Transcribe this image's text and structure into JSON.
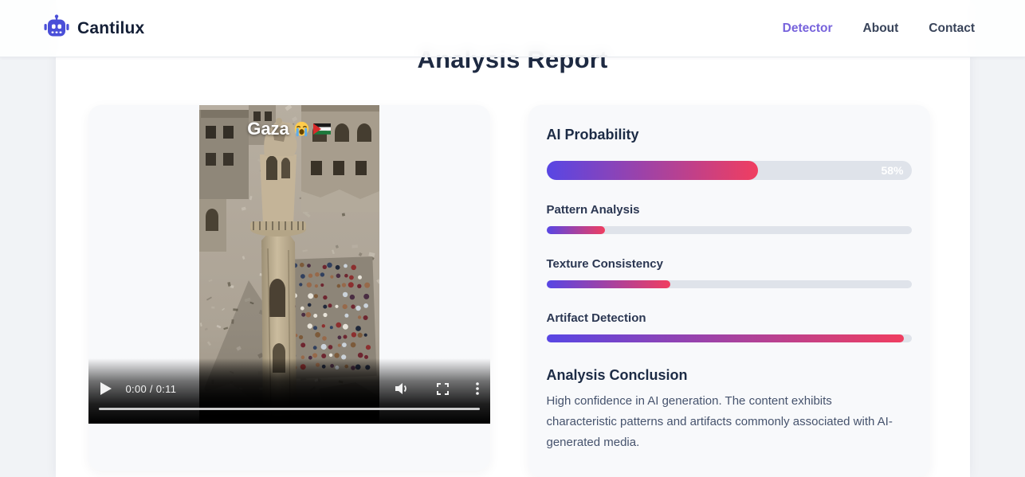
{
  "brand": {
    "name": "Cantilux",
    "logo_icon": "robot-icon",
    "accent": "#4a4fd8"
  },
  "nav": {
    "items": [
      {
        "label": "Detector",
        "active": true
      },
      {
        "label": "About",
        "active": false
      },
      {
        "label": "Contact",
        "active": false
      }
    ],
    "active_color": "#7763dc"
  },
  "page": {
    "title": "Analysis Report"
  },
  "video": {
    "overlay_title": "Gaza",
    "overlay_icons": [
      "crying-face-emoji",
      "palestine-flag"
    ],
    "time_display": "0:00 / 0:11",
    "current_time": "0:00",
    "duration": "0:11",
    "controls": [
      "play-button",
      "mute-button",
      "fullscreen-button",
      "more-options-button"
    ],
    "scene_description": "aerial view of ruined city with damaged minaret and people praying"
  },
  "report": {
    "ai_probability": {
      "label": "AI Probability",
      "value_pct": 58,
      "value_label": "58%"
    },
    "metrics": [
      {
        "label": "Pattern Analysis",
        "value_pct": 16
      },
      {
        "label": "Texture Consistency",
        "value_pct": 34
      },
      {
        "label": "Artifact Detection",
        "value_pct": 98
      }
    ],
    "conclusion": {
      "title": "Analysis Conclusion",
      "text": "High confidence in AI generation. The content exhibits characteristic patterns and artifacts commonly associated with AI-generated media."
    },
    "bar_gradient": [
      "#5846e4",
      "#f03e60"
    ],
    "track_color": "#dfe3ea"
  }
}
